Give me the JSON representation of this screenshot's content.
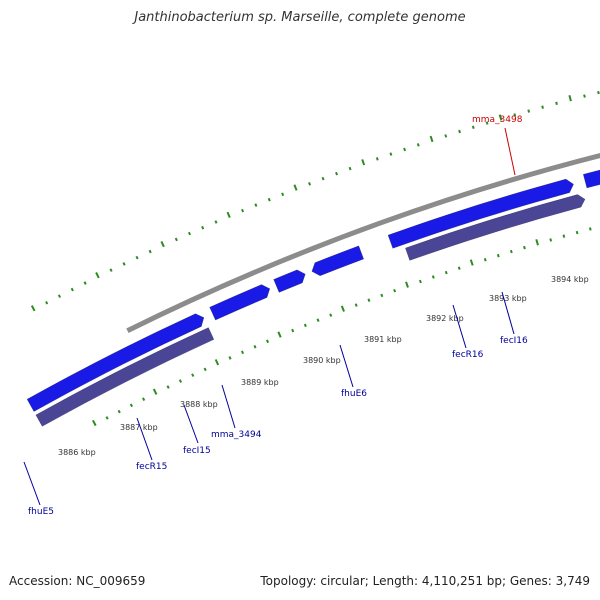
{
  "title": "Janthinobacterium sp. Marseille, complete genome",
  "footer": {
    "accession": "Accession: NC_009659",
    "summary": "Topology: circular; Length: 4,110,251 bp; Genes: 3,749"
  },
  "colors": {
    "backbone": "#8c8c8c",
    "cds_forward": "#1a1ae6",
    "cds_reverse": "#4b4596",
    "tick": "#2e8b22",
    "highlight": "#ee1111",
    "gray_feature": "#666666",
    "rna": "#22ccee",
    "label_default": "#000099",
    "label_highlight": "#cc0000"
  },
  "tick_labels": [
    "3886 kbp",
    "3887 kbp",
    "3888 kbp",
    "3889 kbp",
    "3890 kbp",
    "3891 kbp",
    "3892 kbp",
    "3893 kbp",
    "3894 kbp"
  ],
  "gene_labels": [
    {
      "name": "fhuE5",
      "highlight": false
    },
    {
      "name": "fecR15",
      "highlight": false
    },
    {
      "name": "fecI15",
      "highlight": false
    },
    {
      "name": "mma_3494",
      "highlight": false
    },
    {
      "name": "fhuE6",
      "highlight": false
    },
    {
      "name": "fecR16",
      "highlight": false
    },
    {
      "name": "fecI16",
      "highlight": false
    },
    {
      "name": "mma_3498",
      "highlight": true
    }
  ]
}
